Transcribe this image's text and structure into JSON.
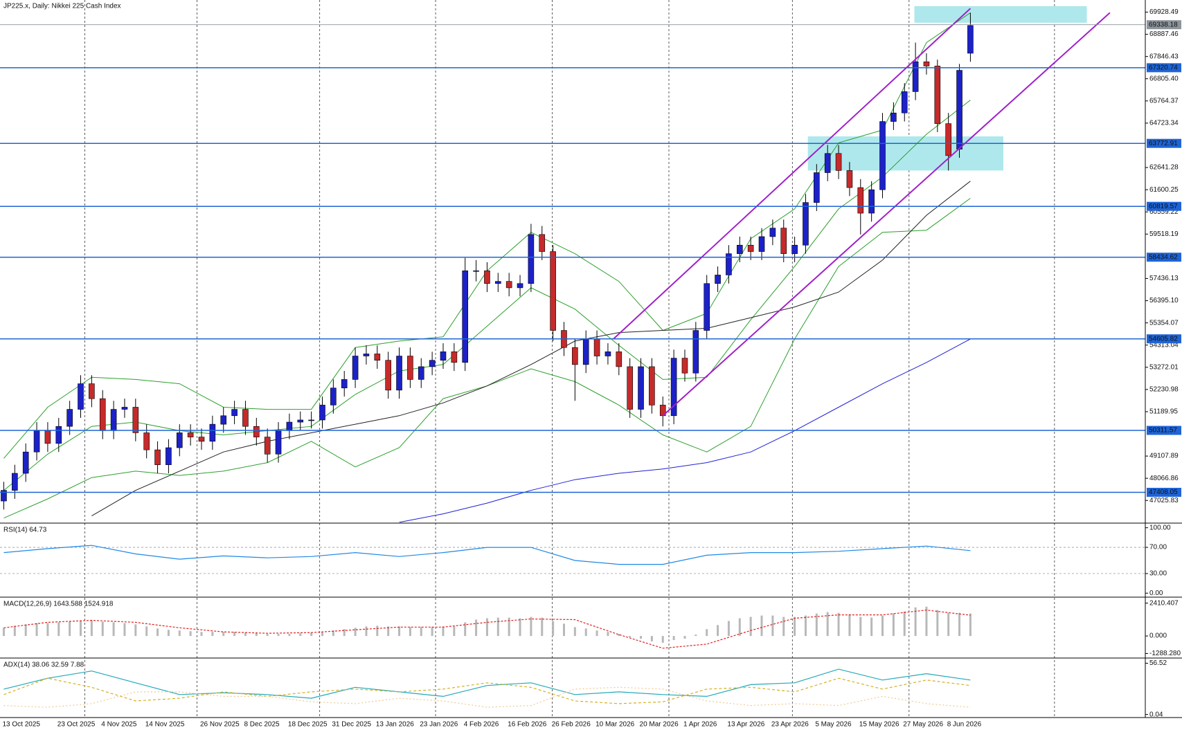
{
  "header": "JP225.x, Daily:  Nikkei 225 Cash Index",
  "chart_data": [
    {
      "type": "candlestick",
      "categories": [
        "13 Oct 2025",
        null,
        null,
        null,
        null,
        "23 Oct 2025",
        null,
        null,
        null,
        "4 Nov 2025",
        null,
        null,
        null,
        "14 Nov 2025",
        null,
        null,
        null,
        null,
        "26 Nov 2025",
        null,
        null,
        null,
        "8 Dec 2025",
        null,
        null,
        null,
        "18 Dec 2025",
        null,
        null,
        null,
        "31 Dec 2025",
        null,
        null,
        null,
        "13 Jan 2026",
        null,
        null,
        null,
        "23 Jan 2026",
        null,
        null,
        null,
        "4 Feb 2026",
        null,
        null,
        null,
        "16 Feb 2026",
        null,
        null,
        null,
        "26 Feb 2026",
        null,
        null,
        null,
        "10 Mar 2026",
        null,
        null,
        null,
        "20 Mar 2026",
        null,
        null,
        null,
        "1 Apr 2026",
        null,
        null,
        null,
        "13 Apr 2026",
        null,
        null,
        null,
        "23 Apr 2026",
        null,
        null,
        null,
        "5 May 2026",
        null,
        null,
        null,
        "15 May 2026",
        null,
        null,
        null,
        "27 May 2026",
        null,
        null,
        null,
        "8 Jun 2026",
        null,
        null
      ],
      "open": [
        47000,
        47500,
        48300,
        49300,
        50300,
        49700,
        50500,
        51300,
        52500,
        51800,
        50300,
        51300,
        51400,
        50200,
        49400,
        48700,
        49500,
        50200,
        50000,
        49800,
        50600,
        51000,
        51300,
        50500,
        50000,
        49200,
        50300,
        50700,
        50800,
        50800,
        51500,
        52300,
        52700,
        53800,
        53900,
        53600,
        52200,
        53800,
        52700,
        53300,
        53600,
        54000,
        53500,
        57800,
        57800,
        57200,
        57300,
        57000,
        57200,
        59500,
        58700,
        55000,
        54200,
        53400,
        54600,
        53800,
        54000,
        53300,
        51300,
        53300,
        51500,
        51000,
        53700,
        53000,
        55000,
        57200,
        57600,
        58600,
        59000,
        58700,
        59400,
        59800,
        58600,
        59000,
        61000,
        62400,
        63300,
        62500,
        61700,
        60500,
        61600,
        64800,
        65200,
        66200,
        67600,
        67400,
        64700,
        63500,
        68000
      ],
      "high": [
        47900,
        48700,
        49700,
        50700,
        50700,
        50900,
        51700,
        52900,
        52900,
        52200,
        51700,
        51800,
        51800,
        50600,
        49800,
        49900,
        50600,
        50600,
        50400,
        51000,
        51400,
        51700,
        51700,
        50900,
        50400,
        50700,
        51100,
        51200,
        51200,
        51900,
        52700,
        53100,
        54200,
        54300,
        54300,
        54000,
        54200,
        54200,
        53700,
        54000,
        54400,
        54400,
        58400,
        58300,
        58200,
        57700,
        57700,
        57600,
        60000,
        59900,
        59000,
        55400,
        54600,
        55000,
        55000,
        54400,
        54400,
        53700,
        53700,
        53700,
        51900,
        54100,
        54100,
        55400,
        57600,
        58000,
        59000,
        59400,
        59400,
        59800,
        60200,
        60200,
        59400,
        61400,
        62800,
        63700,
        63700,
        62900,
        62100,
        62000,
        65200,
        65700,
        66600,
        68500,
        68000,
        67700,
        65200,
        67500,
        69900
      ],
      "low": [
        46600,
        47100,
        47900,
        48900,
        49300,
        49300,
        50100,
        50900,
        51400,
        49900,
        49900,
        50900,
        49800,
        49000,
        48300,
        48300,
        49100,
        49600,
        49400,
        49400,
        50200,
        50600,
        50100,
        49600,
        48800,
        48800,
        49900,
        50300,
        50400,
        50400,
        51100,
        51900,
        52300,
        53400,
        53200,
        51800,
        51800,
        52300,
        52300,
        52900,
        53200,
        53100,
        53100,
        57300,
        56800,
        56800,
        56600,
        56600,
        56800,
        58300,
        54500,
        53800,
        51700,
        53000,
        53400,
        53400,
        52900,
        50900,
        50900,
        51100,
        50500,
        50600,
        52600,
        52600,
        54600,
        56800,
        57200,
        58200,
        58300,
        58300,
        59000,
        58200,
        58200,
        58600,
        60600,
        62000,
        62100,
        61300,
        59500,
        60100,
        61200,
        64400,
        64800,
        65800,
        67000,
        64300,
        62500,
        63100,
        67600
      ],
      "close": [
        47500,
        48300,
        49300,
        50300,
        49700,
        50500,
        51300,
        52500,
        51800,
        50300,
        51300,
        51400,
        50200,
        49400,
        48700,
        49500,
        50200,
        50000,
        49800,
        50600,
        51000,
        51300,
        50500,
        50000,
        49200,
        50300,
        50700,
        50800,
        50800,
        51500,
        52300,
        52700,
        53800,
        53900,
        53600,
        52200,
        53800,
        52700,
        53300,
        53600,
        54000,
        53500,
        57800,
        57800,
        57200,
        57300,
        57000,
        57200,
        59500,
        58700,
        55000,
        54200,
        53400,
        54600,
        53800,
        54000,
        53300,
        51300,
        53300,
        51500,
        51000,
        53700,
        53000,
        55000,
        57200,
        57600,
        58600,
        59000,
        58700,
        59400,
        59800,
        58600,
        59000,
        61000,
        62400,
        63300,
        62500,
        61700,
        60500,
        61600,
        64800,
        65200,
        66200,
        67600,
        67400,
        64700,
        63200,
        67200,
        69300
      ],
      "up_color": "#1c22c8",
      "down_color": "#c62a2a",
      "ylim": [
        45996,
        70497
      ],
      "yticks": [
        69928.49,
        68887.46,
        67846.43,
        {
          "value": 66805.4,
          "label": "66805.40"
        },
        65764.37,
        64723.34,
        62641.28,
        61600.25,
        60559.22,
        59518.19,
        57436.13,
        {
          "value": 56395.1,
          "label": "56395.10"
        },
        55354.07,
        54313.04,
        53272.01,
        52230.98,
        51189.95,
        49107.89,
        48066.86,
        47025.83
      ],
      "price_line": 69338.18,
      "price_line_color": "#8c949c",
      "levels": [
        67320.74,
        63772.91,
        60819.57,
        58434.62,
        54605.82,
        50311.57,
        47408.05
      ],
      "level_color": "#1e64d6",
      "series": [
        {
          "color": "#2ca02c",
          "x": [
            0,
            4,
            8,
            12,
            16,
            20,
            24,
            28,
            32,
            36,
            40,
            44,
            48,
            52,
            56,
            60,
            64,
            68,
            72,
            76,
            80,
            84,
            88
          ],
          "values": [
            49000,
            51400,
            52800,
            52700,
            52500,
            51400,
            51300,
            51300,
            54200,
            54500,
            54700,
            57800,
            59600,
            58600,
            57300,
            55000,
            55800,
            59300,
            60700,
            63800,
            64400,
            68500,
            69900
          ]
        },
        {
          "color": "#2ca02c",
          "x": [
            0,
            4,
            8,
            12,
            16,
            20,
            24,
            28,
            32,
            36,
            40,
            44,
            48,
            52,
            56,
            60,
            64,
            68,
            72,
            76,
            80,
            84,
            88
          ],
          "values": [
            47500,
            49200,
            50500,
            50700,
            50300,
            50100,
            50300,
            50500,
            52000,
            53100,
            53400,
            55200,
            57000,
            56000,
            54300,
            52700,
            52800,
            55500,
            58000,
            60700,
            62200,
            64200,
            65800
          ]
        },
        {
          "color": "#2ca02c",
          "x": [
            0,
            4,
            8,
            12,
            16,
            20,
            24,
            28,
            32,
            36,
            40,
            44,
            48,
            52,
            56,
            60,
            64,
            68,
            72,
            76,
            80,
            84,
            88
          ],
          "values": [
            46200,
            47100,
            48100,
            48400,
            48200,
            48400,
            48800,
            49800,
            48600,
            49500,
            51800,
            52400,
            53200,
            52600,
            51500,
            50100,
            49300,
            50500,
            54600,
            58000,
            59600,
            59700,
            61200
          ]
        },
        {
          "color": "#222222",
          "x": [
            8,
            12,
            16,
            20,
            24,
            28,
            32,
            36,
            40,
            44,
            48,
            52,
            56,
            60,
            64,
            68,
            72,
            76,
            80,
            84,
            88
          ],
          "values": [
            46300,
            47500,
            48400,
            49300,
            49800,
            50200,
            50600,
            51000,
            51600,
            52400,
            53400,
            54500,
            54900,
            55000,
            55100,
            55600,
            56100,
            56800,
            58300,
            60400,
            62000
          ]
        },
        {
          "color": "#1f1fd6",
          "x": [
            36,
            40,
            44,
            48,
            52,
            56,
            60,
            64,
            68,
            72,
            76,
            80,
            84,
            88
          ],
          "values": [
            46000,
            46400,
            46900,
            47500,
            48000,
            48300,
            48500,
            48800,
            49300,
            50300,
            51400,
            52500,
            53500,
            54600
          ]
        }
      ],
      "channel": [
        {
          "x": [
            55.5,
            88
          ],
          "y": [
            54600,
            70100
          ]
        },
        {
          "x": [
            60,
            100.7
          ],
          "y": [
            51000,
            69900
          ]
        }
      ],
      "channel_color": "#a020c8",
      "zones": [
        {
          "x": [
            82.9,
            98.6
          ],
          "y": [
            69430,
            70210
          ]
        },
        {
          "x": [
            73.2,
            91
          ],
          "y": [
            62500,
            64100
          ]
        }
      ],
      "zone_color": "#aee8ec"
    },
    {
      "type": "line",
      "title": "RSI(14) 64.73",
      "x": [
        0,
        4,
        8,
        12,
        16,
        20,
        24,
        28,
        32,
        36,
        40,
        44,
        48,
        52,
        56,
        60,
        64,
        68,
        72,
        76,
        80,
        84,
        88
      ],
      "series": [
        {
          "color": "#1e88e5",
          "values": [
            62,
            68,
            73,
            60,
            52,
            57,
            54,
            56,
            62,
            56,
            62,
            70,
            70,
            50,
            44,
            44,
            58,
            62,
            62,
            64,
            68,
            72,
            65
          ]
        }
      ],
      "ylim": [
        -5,
        106
      ],
      "yticks": [
        {
          "value": 100,
          "label": "100.00"
        },
        {
          "value": 70,
          "label": "70.00"
        },
        {
          "value": 30,
          "label": "30.00"
        },
        {
          "value": 0,
          "label": "0.00"
        }
      ],
      "levels": [
        70,
        30
      ]
    },
    {
      "type": "macd",
      "title": "MACD(12,26,9) 1643.588 1524.918",
      "histogram": [
        600,
        750,
        850,
        950,
        950,
        1000,
        1050,
        1150,
        1150,
        1050,
        1000,
        950,
        850,
        700,
        550,
        450,
        400,
        350,
        300,
        300,
        300,
        300,
        250,
        200,
        150,
        150,
        150,
        200,
        250,
        300,
        400,
        500,
        600,
        700,
        750,
        700,
        700,
        650,
        650,
        650,
        700,
        700,
        1000,
        1200,
        1300,
        1350,
        1350,
        1300,
        1400,
        1350,
        1100,
        900,
        650,
        550,
        400,
        300,
        150,
        -100,
        -200,
        -400,
        -500,
        -300,
        -200,
        100,
        500,
        800,
        1100,
        1300,
        1400,
        1500,
        1500,
        1400,
        1400,
        1500,
        1650,
        1750,
        1700,
        1600,
        1400,
        1350,
        1500,
        1650,
        1800,
        2100,
        2150,
        1900,
        1700,
        1700,
        1650
      ],
      "histogram_color": "#b8b8b8",
      "x": [
        0,
        4,
        8,
        12,
        16,
        20,
        24,
        28,
        32,
        36,
        40,
        44,
        48,
        52,
        56,
        60,
        64,
        68,
        72,
        76,
        80,
        84,
        88
      ],
      "series": [
        {
          "color": "#e02020",
          "values": [
            600,
            1000,
            1150,
            1000,
            600,
            300,
            200,
            250,
            450,
            650,
            650,
            1000,
            1250,
            1200,
            100,
            -900,
            -600,
            400,
            1300,
            1550,
            1550,
            1900,
            1525
          ]
        }
      ],
      "ylim": [
        -1570,
        2800
      ],
      "yticks": [
        2410.407,
        {
          "value": 0,
          "label": "0.000"
        },
        {
          "value": -1288.28,
          "label": "-1288.280"
        }
      ]
    },
    {
      "type": "line",
      "title": "ADX(14) 38.06 32.59 7.88",
      "x": [
        0,
        4,
        8,
        12,
        16,
        20,
        24,
        28,
        32,
        36,
        40,
        44,
        48,
        52,
        56,
        60,
        64,
        68,
        72,
        76,
        80,
        84,
        88
      ],
      "series": [
        {
          "color": "#20a8b8",
          "values": [
            28,
            40,
            48,
            35,
            22,
            24,
            22,
            18,
            30,
            25,
            20,
            32,
            35,
            22,
            25,
            22,
            20,
            33,
            35,
            50,
            38,
            45,
            38
          ]
        },
        {
          "color": "#d4b020",
          "values": [
            22,
            40,
            30,
            15,
            18,
            25,
            20,
            25,
            28,
            25,
            28,
            35,
            30,
            15,
            12,
            14,
            28,
            30,
            25,
            40,
            28,
            38,
            32
          ]
        },
        {
          "color": "#f0c890",
          "values": [
            10,
            8,
            12,
            25,
            25,
            20,
            20,
            14,
            12,
            18,
            15,
            8,
            10,
            28,
            30,
            28,
            15,
            10,
            12,
            10,
            20,
            12,
            8
          ]
        }
      ],
      "ylim": [
        -3.3,
        61.5
      ],
      "yticks": [
        56.52,
        0.04
      ]
    }
  ]
}
